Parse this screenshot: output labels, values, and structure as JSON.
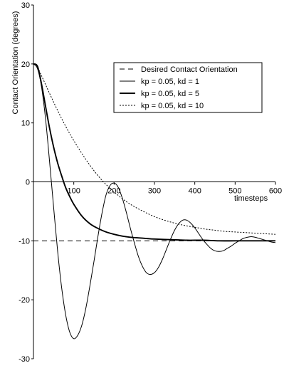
{
  "chart_data": {
    "type": "line",
    "xlabel": "timesteps",
    "ylabel": "Contact Orientation (degrees)",
    "xlim": [
      0,
      600
    ],
    "ylim": [
      -30,
      30
    ],
    "x_ticks": [
      100,
      200,
      300,
      400,
      500,
      600
    ],
    "y_ticks": [
      30,
      20,
      10,
      0,
      -10,
      -20,
      -30
    ],
    "grid": false,
    "legend_position": "upper-right",
    "series": [
      {
        "name": "Desired Contact Orientation",
        "style": "dashed",
        "x": [
          0,
          600
        ],
        "y": [
          -10,
          -10
        ]
      },
      {
        "name": "kp = 0.05, kd = 1",
        "style": "thin-solid",
        "x": [
          0,
          10,
          20,
          30,
          40,
          50,
          60,
          70,
          80,
          90,
          100,
          110,
          120,
          130,
          140,
          150,
          160,
          170,
          180,
          190,
          200,
          210,
          220,
          230,
          240,
          250,
          260,
          270,
          280,
          290,
          300,
          310,
          320,
          330,
          340,
          350,
          360,
          370,
          380,
          390,
          400,
          410,
          420,
          430,
          440,
          450,
          460,
          470,
          480,
          490,
          500,
          510,
          520,
          530,
          540,
          550,
          560,
          570,
          580,
          590,
          600
        ],
        "y": [
          20.0,
          19.2,
          16.1,
          10.7,
          3.4,
          -4.3,
          -11.8,
          -18.0,
          -22.6,
          -25.5,
          -26.6,
          -26.0,
          -24.3,
          -21.4,
          -17.6,
          -13.5,
          -9.2,
          -5.3,
          -2.2,
          -0.6,
          -0.2,
          -0.9,
          -2.7,
          -5.1,
          -7.8,
          -10.3,
          -12.6,
          -14.3,
          -15.4,
          -15.7,
          -15.4,
          -14.5,
          -13.1,
          -11.4,
          -9.7,
          -8.2,
          -7.1,
          -6.5,
          -6.5,
          -7.0,
          -7.8,
          -8.8,
          -9.8,
          -10.6,
          -11.3,
          -11.7,
          -11.8,
          -11.7,
          -11.3,
          -10.9,
          -10.4,
          -10.0,
          -9.6,
          -9.4,
          -9.3,
          -9.4,
          -9.6,
          -9.8,
          -10.0,
          -10.2,
          -10.3
        ]
      },
      {
        "name": "kp = 0.05, kd = 5",
        "style": "thick-solid",
        "x": [
          0,
          10,
          20,
          30,
          40,
          50,
          60,
          70,
          80,
          90,
          100,
          120,
          140,
          160,
          180,
          200,
          220,
          240,
          260,
          280,
          300,
          340,
          380,
          420,
          460,
          500,
          550,
          600
        ],
        "y": [
          20.0,
          19.6,
          16.6,
          12.8,
          9.1,
          5.9,
          3.2,
          1.0,
          -1.0,
          -2.5,
          -3.8,
          -5.8,
          -7.1,
          -7.9,
          -8.5,
          -8.9,
          -9.2,
          -9.4,
          -9.5,
          -9.6,
          -9.7,
          -9.8,
          -9.9,
          -9.9,
          -10.0,
          -10.0,
          -10.0,
          -10.0
        ]
      },
      {
        "name": "kp = 0.05, kd = 10",
        "style": "dotted",
        "x": [
          0,
          10,
          20,
          40,
          60,
          80,
          100,
          125,
          150,
          175,
          200,
          225,
          250,
          275,
          300,
          325,
          350,
          375,
          400,
          425,
          450,
          475,
          500,
          525,
          550,
          575,
          600
        ],
        "y": [
          20.0,
          19.4,
          18.0,
          15.0,
          12.1,
          9.4,
          7.0,
          4.3,
          1.9,
          -0.1,
          -1.7,
          -3.1,
          -4.2,
          -5.1,
          -5.9,
          -6.5,
          -7.0,
          -7.4,
          -7.7,
          -8.0,
          -8.2,
          -8.4,
          -8.5,
          -8.6,
          -8.7,
          -8.8,
          -8.9
        ]
      }
    ]
  }
}
